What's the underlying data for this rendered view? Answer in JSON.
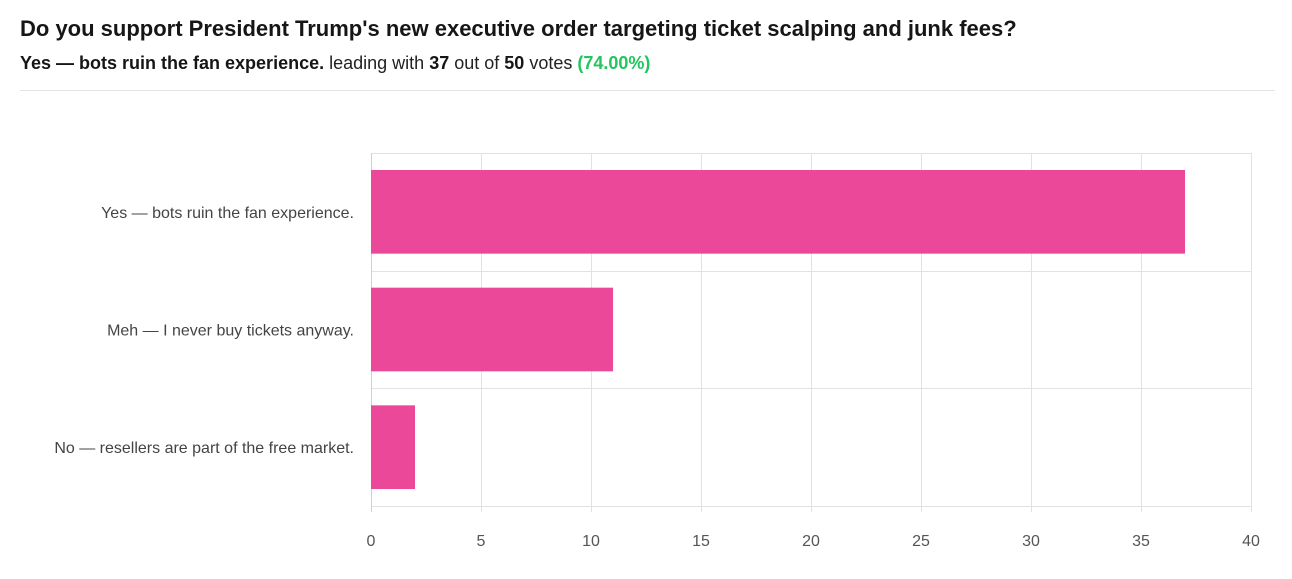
{
  "poll": {
    "question": "Do you support President Trump's new executive order targeting ticket scalping and junk fees?",
    "leader_label": "Yes — bots ruin the fan experience.",
    "text_leading_with": "leading with",
    "leader_votes": "37",
    "text_out_of": "out of",
    "total_votes": "50",
    "text_votes": "votes",
    "leader_percent": "(74.00%)"
  },
  "colors": {
    "bar": "#EC4899",
    "percent": "#22C55E",
    "grid": "#e2e2e2",
    "tick_text": "#555555",
    "category_text": "#444444"
  },
  "chart_data": {
    "type": "bar",
    "orientation": "horizontal",
    "categories": [
      "Yes — bots ruin the fan experience.",
      "Meh — I never buy tickets anyway.",
      "No — resellers are part of the free market."
    ],
    "values": [
      37,
      11,
      2
    ],
    "xlim": [
      0,
      40
    ],
    "xticks": [
      0,
      5,
      10,
      15,
      20,
      25,
      30,
      35,
      40
    ],
    "grid": true,
    "legend": "none",
    "title": "",
    "xlabel": "",
    "ylabel": ""
  }
}
